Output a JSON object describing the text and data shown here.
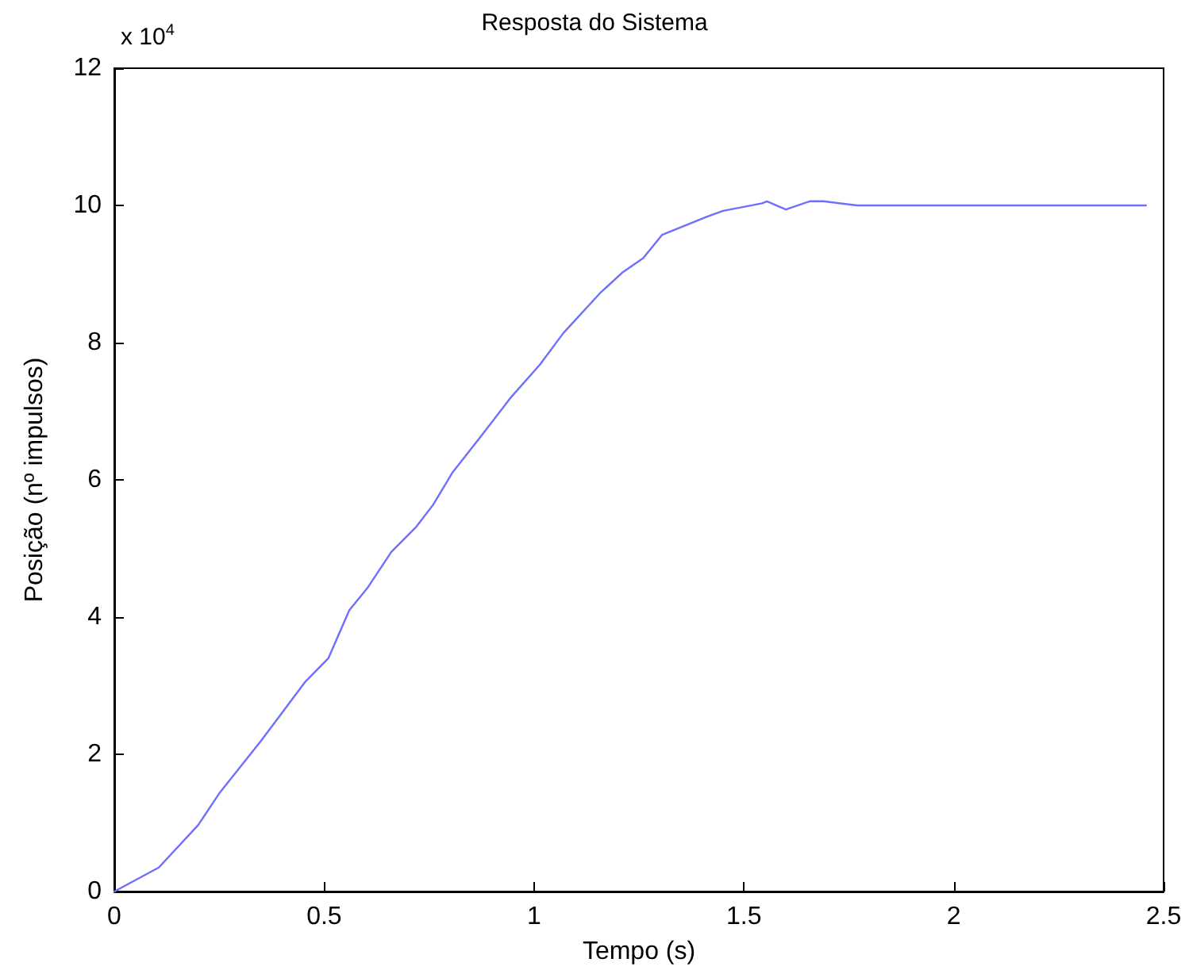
{
  "chart_data": {
    "type": "line",
    "title": "Resposta do Sistema",
    "xlabel": "Tempo (s)",
    "ylabel": "Posição (nº impulsos)",
    "annotations": [
      "x 10$^{4}$"
    ],
    "series": [
      {
        "color": "#6f6fff",
        "x": [
          0,
          0.106,
          0.2,
          0.25,
          0.35,
          0.454,
          0.51,
          0.56,
          0.605,
          0.66,
          0.72,
          0.76,
          0.805,
          0.874,
          0.946,
          1.014,
          1.07,
          1.157,
          1.21,
          1.26,
          1.305,
          1.41,
          1.45,
          1.543,
          1.555,
          1.6,
          1.657,
          1.69,
          1.77,
          2.458
        ],
        "values": [
          0,
          0.35,
          0.97,
          1.43,
          2.2,
          3.05,
          3.4,
          4.1,
          4.44,
          4.95,
          5.32,
          5.64,
          6.1,
          6.64,
          7.21,
          7.68,
          8.14,
          8.72,
          9.02,
          9.23,
          9.57,
          9.83,
          9.92,
          10.03,
          10.06,
          9.94,
          10.06,
          10.06,
          10.0,
          10.0
        ]
      }
    ],
    "xlim": [
      0,
      2.5
    ],
    "xticks": [
      0,
      0.5,
      1,
      1.5,
      2,
      2.5
    ],
    "ylim": [
      0,
      12
    ],
    "yticks": [
      0,
      2,
      4,
      6,
      8,
      10,
      12
    ],
    "grid": false,
    "marker": "none",
    "line_style": "solid"
  }
}
